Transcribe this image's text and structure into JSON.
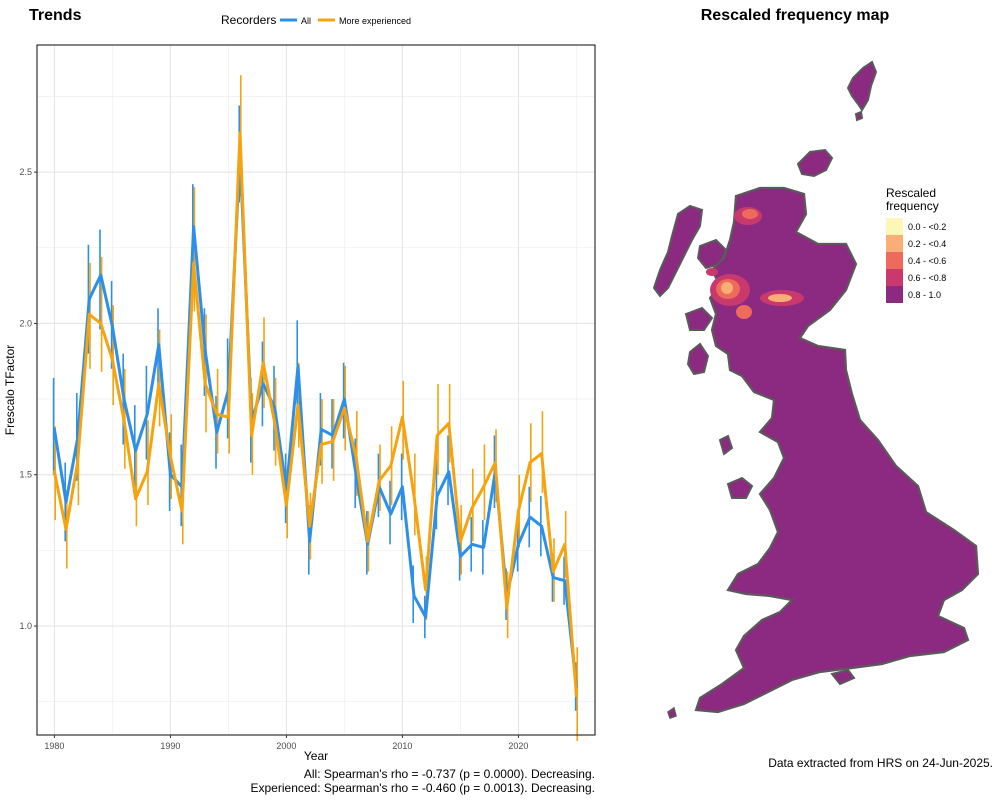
{
  "trends": {
    "title": "Trends",
    "legend": {
      "title": "Recorders",
      "items": [
        "All",
        "More experienced"
      ]
    },
    "stats": [
      "All: Spearman's rho = -0.737 (p = 0.0000). Decreasing.",
      "Experienced: Spearman's rho = -0.460 (p = 0.0013). Decreasing."
    ]
  },
  "map": {
    "title": "Rescaled frequency map",
    "legend": {
      "title_line1": "Rescaled",
      "title_line2": "frequency",
      "bins": [
        {
          "label": "0.0 - <0.2",
          "color": "#FCF7B6"
        },
        {
          "label": "0.2 - <0.4",
          "color": "#F9AE78"
        },
        {
          "label": "0.4 - <0.6",
          "color": "#EE6A5C"
        },
        {
          "label": "0.6 - <0.8",
          "color": "#C9396E"
        },
        {
          "label": "0.8 - 1.0",
          "color": "#8C2981"
        }
      ]
    },
    "land_color": "#8C2981",
    "outline_color": "#5a5a5a"
  },
  "footer": {
    "note": "Data extracted from HRS on 24-Jun-2025."
  },
  "chart_data": {
    "type": "line",
    "xlabel": "Year",
    "ylabel": "Frescalo TFactor",
    "xlim": [
      1978.5,
      2026.6
    ],
    "ylim": [
      0.64,
      2.92
    ],
    "xticks": [
      1980,
      1990,
      2000,
      2010,
      2020
    ],
    "yticks": [
      1.0,
      1.5,
      2.0,
      2.5
    ],
    "grid": true,
    "legend_position": "top",
    "years": [
      1980,
      1981,
      1982,
      1983,
      1984,
      1985,
      1986,
      1987,
      1988,
      1989,
      1990,
      1991,
      1992,
      1993,
      1994,
      1995,
      1996,
      1997,
      1998,
      1999,
      2000,
      2001,
      2002,
      2003,
      2004,
      2005,
      2006,
      2007,
      2008,
      2009,
      2010,
      2011,
      2012,
      2013,
      2014,
      2015,
      2016,
      2017,
      2018,
      2019,
      2020,
      2021,
      2022,
      2023,
      2024,
      2025
    ],
    "series": [
      {
        "name": "All",
        "color": "#2E8FE8",
        "values": [
          1.65,
          1.41,
          1.62,
          2.08,
          2.16,
          1.99,
          1.75,
          1.58,
          1.7,
          1.93,
          1.5,
          1.46,
          2.32,
          1.91,
          1.64,
          1.78,
          2.56,
          1.68,
          1.8,
          1.72,
          1.45,
          1.86,
          1.28,
          1.65,
          1.63,
          1.75,
          1.5,
          1.27,
          1.46,
          1.37,
          1.46,
          1.1,
          1.03,
          1.43,
          1.51,
          1.23,
          1.27,
          1.26,
          1.51,
          1.1,
          1.27,
          1.36,
          1.33,
          1.16,
          1.15,
          0.8
        ],
        "err_low": [
          1.5,
          1.28,
          1.48,
          1.9,
          1.98,
          1.85,
          1.6,
          1.44,
          1.55,
          1.76,
          1.38,
          1.33,
          2.15,
          1.76,
          1.52,
          1.62,
          2.4,
          1.54,
          1.66,
          1.58,
          1.34,
          1.7,
          1.17,
          1.53,
          1.52,
          1.62,
          1.39,
          1.17,
          1.36,
          1.27,
          1.35,
          1.01,
          0.96,
          1.32,
          1.4,
          1.15,
          1.18,
          1.17,
          1.39,
          1.02,
          1.18,
          1.26,
          1.23,
          1.08,
          1.07,
          0.72
        ],
        "err_high": [
          1.82,
          1.54,
          1.77,
          2.26,
          2.31,
          2.14,
          1.9,
          1.73,
          1.86,
          2.05,
          1.64,
          1.6,
          2.46,
          2.05,
          1.76,
          1.95,
          2.72,
          1.82,
          1.94,
          1.86,
          1.57,
          2.01,
          1.4,
          1.77,
          1.75,
          1.87,
          1.62,
          1.38,
          1.57,
          1.48,
          1.57,
          1.2,
          1.1,
          1.55,
          1.63,
          1.32,
          1.36,
          1.35,
          1.63,
          1.19,
          1.36,
          1.46,
          1.43,
          1.24,
          1.23,
          0.88
        ]
      },
      {
        "name": "More experienced",
        "color": "#F5A30F",
        "values": [
          1.51,
          1.32,
          1.54,
          2.03,
          2.0,
          1.88,
          1.68,
          1.42,
          1.51,
          1.8,
          1.56,
          1.38,
          2.2,
          1.8,
          1.7,
          1.69,
          2.63,
          1.63,
          1.87,
          1.67,
          1.4,
          1.73,
          1.33,
          1.6,
          1.61,
          1.72,
          1.56,
          1.28,
          1.48,
          1.53,
          1.69,
          1.43,
          1.12,
          1.63,
          1.67,
          1.28,
          1.39,
          1.46,
          1.54,
          1.06,
          1.38,
          1.54,
          1.57,
          1.18,
          1.27,
          0.77
        ],
        "err_low": [
          1.35,
          1.19,
          1.4,
          1.85,
          1.84,
          1.73,
          1.52,
          1.33,
          1.4,
          1.66,
          1.42,
          1.27,
          2.04,
          1.64,
          1.57,
          1.57,
          2.42,
          1.5,
          1.72,
          1.53,
          1.29,
          1.59,
          1.22,
          1.47,
          1.48,
          1.58,
          1.43,
          1.18,
          1.38,
          1.4,
          1.55,
          1.3,
          1.02,
          1.5,
          1.54,
          1.17,
          1.28,
          1.35,
          1.41,
          0.96,
          1.26,
          1.41,
          1.44,
          1.08,
          1.16,
          0.62
        ],
        "err_high": [
          1.66,
          1.45,
          1.67,
          2.2,
          2.22,
          2.06,
          1.85,
          1.58,
          1.68,
          1.98,
          1.7,
          1.53,
          2.45,
          2.03,
          1.85,
          1.86,
          2.82,
          1.77,
          2.02,
          1.82,
          1.52,
          1.87,
          1.44,
          1.75,
          1.75,
          1.86,
          1.71,
          1.38,
          1.6,
          1.66,
          1.81,
          1.57,
          1.23,
          1.8,
          1.8,
          1.4,
          1.52,
          1.6,
          1.65,
          1.18,
          1.5,
          1.67,
          1.71,
          1.29,
          1.38,
          0.93
        ]
      }
    ]
  }
}
